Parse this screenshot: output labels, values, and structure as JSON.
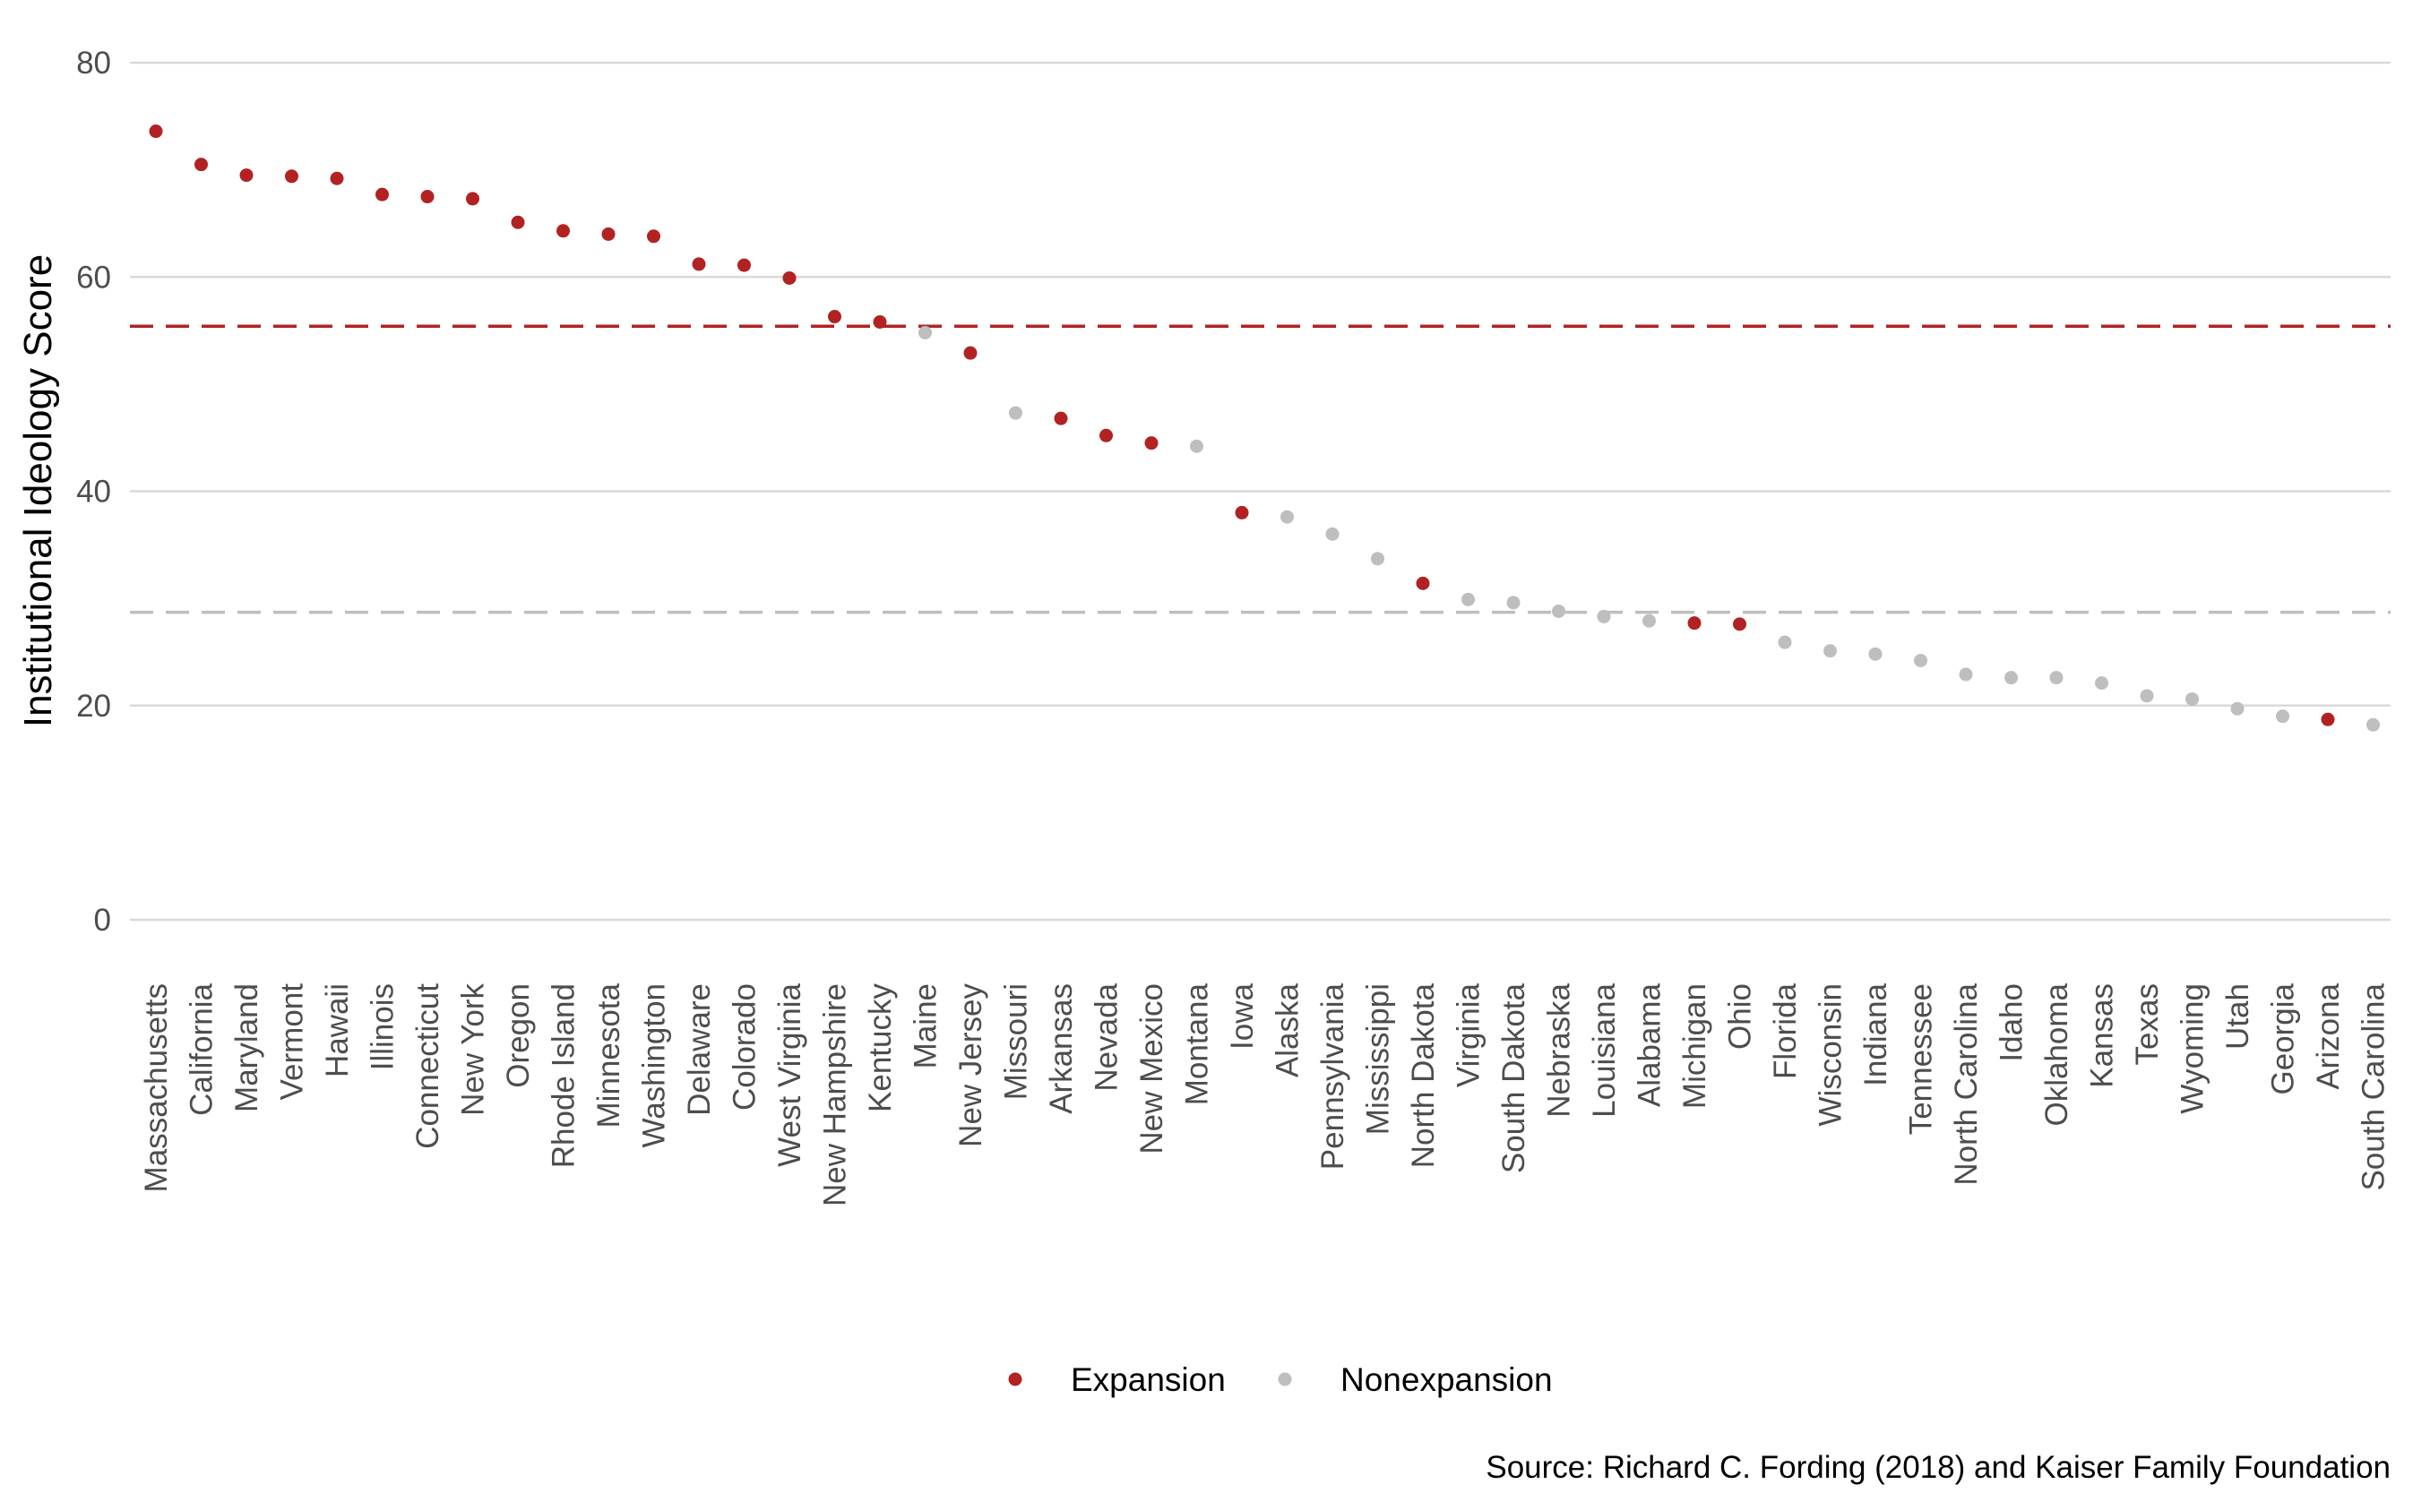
{
  "chart_data": {
    "type": "scatter",
    "title": "",
    "xlabel": "",
    "ylabel": "Institutional Ideology Score",
    "ylim": [
      0,
      80
    ],
    "yticks": [
      0,
      20,
      40,
      60,
      80
    ],
    "grid": "horizontal",
    "legend_position": "bottom",
    "categories": [
      "Massachusetts",
      "California",
      "Maryland",
      "Vermont",
      "Hawaii",
      "Illinois",
      "Connecticut",
      "New York",
      "Oregon",
      "Rhode Island",
      "Minnesota",
      "Washington",
      "Delaware",
      "Colorado",
      "West Virginia",
      "New Hampshire",
      "Kentucky",
      "Maine",
      "New Jersey",
      "Missouri",
      "Arkansas",
      "Nevada",
      "New Mexico",
      "Montana",
      "Iowa",
      "Alaska",
      "Pennsylvania",
      "Mississippi",
      "North Dakota",
      "Virginia",
      "South Dakota",
      "Nebraska",
      "Louisiana",
      "Alabama",
      "Michigan",
      "Ohio",
      "Florida",
      "Wisconsin",
      "Indiana",
      "Tennessee",
      "North Carolina",
      "Idaho",
      "Oklahoma",
      "Kansas",
      "Texas",
      "Wyoming",
      "Utah",
      "Georgia",
      "Arizona",
      "South Carolina"
    ],
    "values": [
      73.6,
      70.5,
      69.5,
      69.4,
      69.2,
      67.7,
      67.5,
      67.3,
      65.1,
      64.3,
      64.0,
      63.8,
      61.2,
      61.1,
      59.9,
      56.3,
      55.8,
      54.8,
      52.9,
      47.3,
      46.8,
      45.2,
      44.5,
      44.2,
      38.0,
      37.6,
      36.0,
      33.7,
      31.4,
      29.9,
      29.6,
      28.8,
      28.3,
      27.9,
      27.7,
      27.6,
      25.9,
      25.1,
      24.8,
      24.2,
      22.9,
      22.6,
      22.6,
      22.1,
      20.9,
      20.6,
      19.7,
      19.0,
      18.7,
      18.2
    ],
    "groups": [
      "Expansion",
      "Expansion",
      "Expansion",
      "Expansion",
      "Expansion",
      "Expansion",
      "Expansion",
      "Expansion",
      "Expansion",
      "Expansion",
      "Expansion",
      "Expansion",
      "Expansion",
      "Expansion",
      "Expansion",
      "Expansion",
      "Expansion",
      "Nonexpansion",
      "Expansion",
      "Nonexpansion",
      "Expansion",
      "Expansion",
      "Expansion",
      "Nonexpansion",
      "Expansion",
      "Nonexpansion",
      "Nonexpansion",
      "Nonexpansion",
      "Expansion",
      "Nonexpansion",
      "Nonexpansion",
      "Nonexpansion",
      "Nonexpansion",
      "Nonexpansion",
      "Expansion",
      "Expansion",
      "Nonexpansion",
      "Nonexpansion",
      "Nonexpansion",
      "Nonexpansion",
      "Nonexpansion",
      "Nonexpansion",
      "Nonexpansion",
      "Nonexpansion",
      "Nonexpansion",
      "Nonexpansion",
      "Nonexpansion",
      "Nonexpansion",
      "Expansion",
      "Nonexpansion"
    ],
    "series": [
      {
        "name": "Expansion",
        "color": "#b22222",
        "mean": 55.4
      },
      {
        "name": "Nonexpansion",
        "color": "#bebebe",
        "mean": 28.7
      }
    ],
    "source": "Source: Richard C. Fording (2018) and Kaiser Family Foundation"
  }
}
